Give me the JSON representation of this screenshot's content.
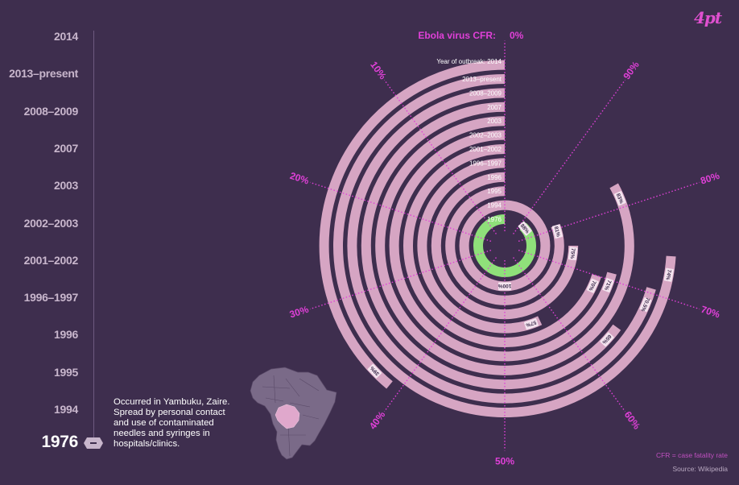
{
  "brand": "4pt",
  "timeline": {
    "years": [
      "2014",
      "2013–present",
      "2008–2009",
      "2007",
      "2003",
      "2002–2003",
      "2001–2002",
      "1996–1997",
      "1996",
      "1995",
      "1994",
      "1976"
    ],
    "selected": "1976",
    "description": "Occurred in Yambuku, Zaire. Spread by personal contact and use of contaminated needles and syringes in hospitals/clinics."
  },
  "footnote": "CFR = case fatality rate",
  "source": "Source: Wikipedia",
  "colors": {
    "background": "#3e2e4e",
    "ring": "#d6a5c3",
    "selected_ring": "#8fe07a",
    "accent": "#e040d8"
  },
  "chart_data": {
    "type": "radial-bar",
    "title": "Ebola virus CFR:",
    "ring_header": "Year of outbreak: 2014",
    "axis_ticks": [
      "0%",
      "10%",
      "20%",
      "30%",
      "40%",
      "50%",
      "60%",
      "70%",
      "80%",
      "90%"
    ],
    "axis_values": [
      0,
      10,
      20,
      30,
      40,
      50,
      60,
      70,
      80,
      90
    ],
    "direction": "counterclockwise-from-top",
    "rings": [
      {
        "label": "1976",
        "value": 88,
        "value_label": "88%",
        "selected": true
      },
      {
        "label": "1994",
        "value": 100,
        "value_label": "100%"
      },
      {
        "label": "1995",
        "value": 81,
        "value_label": "81%"
      },
      {
        "label": "1996",
        "value": 75,
        "value_label": "75%"
      },
      {
        "label": "1996–1997",
        "value": 57,
        "value_label": "57%"
      },
      {
        "label": "2001–2002",
        "value": 70,
        "value_label": "70%"
      },
      {
        "label": "2002–2003",
        "value": 71,
        "value_label": "71%"
      },
      {
        "label": "2003",
        "value": 83,
        "value_label": "83%"
      },
      {
        "label": "2007",
        "value": 65,
        "value_label": "65%"
      },
      {
        "label": "2008–2009",
        "value": 70.5,
        "value_label": "70.5%"
      },
      {
        "label": "2013–present",
        "value": 74,
        "value_label": "74%"
      },
      {
        "label": "2014",
        "value": 39,
        "value_label": "39%"
      }
    ]
  },
  "map": {
    "name": "Africa"
  }
}
